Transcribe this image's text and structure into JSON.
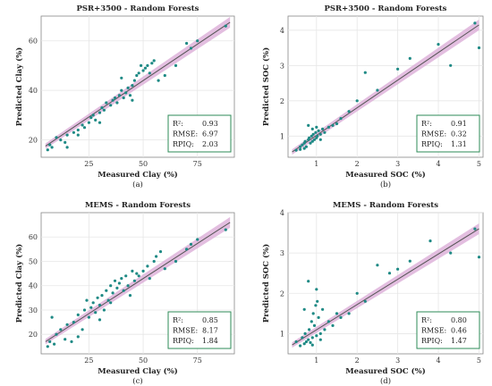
{
  "chart_data": [
    {
      "type": "scatter",
      "title": "PSR+3500 - Random Forests",
      "xlabel": "Measured Clay (%)",
      "ylabel": "Predicted Clay (%)",
      "caption": "(a)",
      "xlim": [
        3,
        92
      ],
      "ylim": [
        13,
        70
      ],
      "xticks": [
        25,
        50,
        75
      ],
      "yticks": [
        20,
        40,
        60
      ],
      "fit_line": {
        "x": [
          5,
          90
        ],
        "y": [
          17.5,
          67.5
        ]
      },
      "stats": {
        "r2_label": "R²:",
        "r2": "0.93",
        "rmse_label": "RMSE:",
        "rmse": "6.97",
        "rpiq_label": "RPIQ:",
        "rpiq": "2.03"
      },
      "colors": {
        "points": "#1f8a85",
        "line": "#555555",
        "band": "#d9a8d6",
        "stat_box": "#2e8b57"
      },
      "points": [
        [
          6,
          16
        ],
        [
          7,
          18
        ],
        [
          8,
          17
        ],
        [
          10,
          21
        ],
        [
          12,
          20
        ],
        [
          14,
          19
        ],
        [
          15,
          22
        ],
        [
          18,
          23
        ],
        [
          20,
          24
        ],
        [
          22,
          26
        ],
        [
          23,
          25
        ],
        [
          25,
          27
        ],
        [
          26,
          29
        ],
        [
          27,
          30
        ],
        [
          28,
          28
        ],
        [
          30,
          31
        ],
        [
          31,
          33
        ],
        [
          32,
          32
        ],
        [
          33,
          35
        ],
        [
          35,
          34
        ],
        [
          36,
          36
        ],
        [
          37,
          37
        ],
        [
          38,
          35
        ],
        [
          39,
          38
        ],
        [
          40,
          40
        ],
        [
          41,
          37
        ],
        [
          42,
          39
        ],
        [
          43,
          41
        ],
        [
          44,
          38
        ],
        [
          45,
          42
        ],
        [
          46,
          44
        ],
        [
          47,
          46
        ],
        [
          48,
          47
        ],
        [
          49,
          50
        ],
        [
          50,
          48
        ],
        [
          51,
          49
        ],
        [
          52,
          50
        ],
        [
          53,
          47
        ],
        [
          54,
          51
        ],
        [
          55,
          52
        ],
        [
          57,
          44
        ],
        [
          60,
          46
        ],
        [
          65,
          50
        ],
        [
          70,
          59
        ],
        [
          72,
          57
        ],
        [
          75,
          60
        ],
        [
          88,
          66
        ],
        [
          40,
          45
        ],
        [
          45,
          36
        ],
        [
          30,
          27
        ],
        [
          20,
          22
        ],
        [
          15,
          17
        ]
      ]
    },
    {
      "type": "scatter",
      "title": "PSR+3500 - Random Forests",
      "xlabel": "Measured SOC (%)",
      "ylabel": "Predicted SOC (%)",
      "caption": "(b)",
      "xlim": [
        0.3,
        5.1
      ],
      "ylim": [
        0.4,
        4.4
      ],
      "xticks": [
        1,
        2,
        3,
        4,
        5
      ],
      "yticks": [
        1,
        2,
        3,
        4
      ],
      "fit_line": {
        "x": [
          0.4,
          5
        ],
        "y": [
          0.55,
          4.15
        ]
      },
      "stats": {
        "r2_label": "R²:",
        "r2": "0.91",
        "rmse_label": "RMSE:",
        "rmse": "0.32",
        "rpiq_label": "RPIQ:",
        "rpiq": "1.31"
      },
      "colors": {
        "points": "#1f8a85",
        "line": "#555555",
        "band": "#d9a8d6",
        "stat_box": "#2e8b57"
      },
      "points": [
        [
          0.5,
          0.6
        ],
        [
          0.6,
          0.7
        ],
        [
          0.65,
          0.75
        ],
        [
          0.7,
          0.8
        ],
        [
          0.72,
          0.85
        ],
        [
          0.75,
          0.7
        ],
        [
          0.8,
          0.9
        ],
        [
          0.82,
          0.95
        ],
        [
          0.85,
          0.8
        ],
        [
          0.88,
          1.0
        ],
        [
          0.9,
          0.85
        ],
        [
          0.92,
          1.05
        ],
        [
          0.95,
          0.9
        ],
        [
          0.98,
          1.1
        ],
        [
          1.0,
          0.95
        ],
        [
          1.02,
          1.0
        ],
        [
          1.05,
          1.15
        ],
        [
          1.1,
          1.05
        ],
        [
          1.15,
          1.2
        ],
        [
          1.2,
          1.1
        ],
        [
          1.3,
          1.25
        ],
        [
          1.4,
          1.3
        ],
        [
          1.5,
          1.35
        ],
        [
          1.6,
          1.5
        ],
        [
          1.8,
          1.7
        ],
        [
          2.0,
          2.0
        ],
        [
          2.2,
          2.8
        ],
        [
          2.5,
          2.3
        ],
        [
          3.0,
          2.9
        ],
        [
          3.3,
          3.2
        ],
        [
          4.0,
          3.6
        ],
        [
          4.3,
          3.0
        ],
        [
          4.9,
          4.2
        ],
        [
          5.0,
          3.5
        ],
        [
          0.8,
          1.3
        ],
        [
          0.9,
          1.2
        ],
        [
          1.0,
          1.25
        ],
        [
          0.7,
          0.65
        ],
        [
          0.6,
          0.62
        ],
        [
          1.1,
          0.9
        ]
      ]
    },
    {
      "type": "scatter",
      "title": "MEMS - Random Forests",
      "xlabel": "Measured Clay (%)",
      "ylabel": "Predicted Clay (%)",
      "caption": "(c)",
      "xlim": [
        3,
        92
      ],
      "ylim": [
        12,
        70
      ],
      "xticks": [
        25,
        50,
        75
      ],
      "yticks": [
        20,
        30,
        40,
        50,
        60
      ],
      "fit_line": {
        "x": [
          5,
          90
        ],
        "y": [
          17,
          66
        ]
      },
      "stats": {
        "r2_label": "R²:",
        "r2": "0.85",
        "rmse_label": "RMSE:",
        "rmse": "8.17",
        "rpiq_label": "RPIQ:",
        "rpiq": "1.84"
      },
      "colors": {
        "points": "#1f8a85",
        "line": "#555555",
        "band": "#d9a8d6",
        "stat_box": "#2e8b57"
      },
      "points": [
        [
          6,
          15
        ],
        [
          7,
          17
        ],
        [
          8,
          27
        ],
        [
          9,
          16
        ],
        [
          10,
          20
        ],
        [
          12,
          22
        ],
        [
          14,
          18
        ],
        [
          15,
          24
        ],
        [
          17,
          17
        ],
        [
          18,
          25
        ],
        [
          20,
          28
        ],
        [
          22,
          22
        ],
        [
          23,
          30
        ],
        [
          24,
          34
        ],
        [
          25,
          27
        ],
        [
          26,
          31
        ],
        [
          27,
          33
        ],
        [
          28,
          29
        ],
        [
          29,
          35
        ],
        [
          30,
          32
        ],
        [
          31,
          36
        ],
        [
          32,
          30
        ],
        [
          33,
          38
        ],
        [
          34,
          34
        ],
        [
          35,
          40
        ],
        [
          36,
          37
        ],
        [
          37,
          42
        ],
        [
          38,
          39
        ],
        [
          39,
          41
        ],
        [
          40,
          43
        ],
        [
          41,
          38
        ],
        [
          42,
          44
        ],
        [
          43,
          40
        ],
        [
          44,
          36
        ],
        [
          45,
          46
        ],
        [
          46,
          42
        ],
        [
          47,
          45
        ],
        [
          48,
          44
        ],
        [
          50,
          46
        ],
        [
          52,
          48
        ],
        [
          53,
          43
        ],
        [
          55,
          50
        ],
        [
          56,
          52
        ],
        [
          58,
          54
        ],
        [
          60,
          47
        ],
        [
          65,
          50
        ],
        [
          70,
          55
        ],
        [
          72,
          57
        ],
        [
          75,
          59
        ],
        [
          88,
          63
        ],
        [
          35,
          33
        ],
        [
          30,
          26
        ],
        [
          20,
          19
        ]
      ]
    },
    {
      "type": "scatter",
      "title": "MEMS - Random Forests",
      "xlabel": "Measured SOC (%)",
      "ylabel": "Predicted SOC (%)",
      "caption": "(d)",
      "xlim": [
        0.3,
        5.1
      ],
      "ylim": [
        0.5,
        4.0
      ],
      "xticks": [
        1,
        2,
        3,
        4,
        5
      ],
      "yticks": [
        1,
        2,
        3,
        4
      ],
      "fit_line": {
        "x": [
          0.4,
          5
        ],
        "y": [
          0.72,
          3.6
        ]
      },
      "stats": {
        "r2_label": "R²:",
        "r2": "0.80",
        "rmse_label": "RMSE:",
        "rmse": "0.46",
        "rpiq_label": "RPIQ:",
        "rpiq": "1.47"
      },
      "colors": {
        "points": "#1f8a85",
        "line": "#555555",
        "band": "#d9a8d6",
        "stat_box": "#2e8b57"
      },
      "points": [
        [
          0.5,
          0.8
        ],
        [
          0.6,
          0.7
        ],
        [
          0.65,
          0.9
        ],
        [
          0.7,
          0.75
        ],
        [
          0.72,
          1.0
        ],
        [
          0.75,
          0.8
        ],
        [
          0.8,
          0.85
        ],
        [
          0.82,
          1.1
        ],
        [
          0.85,
          0.78
        ],
        [
          0.88,
          1.3
        ],
        [
          0.9,
          0.9
        ],
        [
          0.92,
          1.5
        ],
        [
          0.95,
          1.2
        ],
        [
          0.98,
          1.7
        ],
        [
          1.0,
          0.95
        ],
        [
          1.02,
          1.8
        ],
        [
          1.05,
          1.4
        ],
        [
          1.1,
          1.0
        ],
        [
          1.15,
          1.6
        ],
        [
          1.2,
          1.1
        ],
        [
          1.3,
          1.3
        ],
        [
          1.4,
          1.2
        ],
        [
          1.5,
          1.5
        ],
        [
          1.6,
          1.4
        ],
        [
          1.8,
          1.5
        ],
        [
          2.0,
          2.0
        ],
        [
          2.2,
          1.8
        ],
        [
          2.5,
          2.7
        ],
        [
          2.8,
          2.5
        ],
        [
          3.0,
          2.6
        ],
        [
          3.3,
          2.8
        ],
        [
          3.8,
          3.3
        ],
        [
          4.3,
          3.0
        ],
        [
          4.9,
          3.6
        ],
        [
          5.0,
          2.9
        ],
        [
          0.8,
          2.3
        ],
        [
          1.0,
          2.1
        ],
        [
          0.7,
          1.6
        ],
        [
          1.1,
          0.85
        ],
        [
          0.9,
          0.72
        ]
      ]
    }
  ]
}
